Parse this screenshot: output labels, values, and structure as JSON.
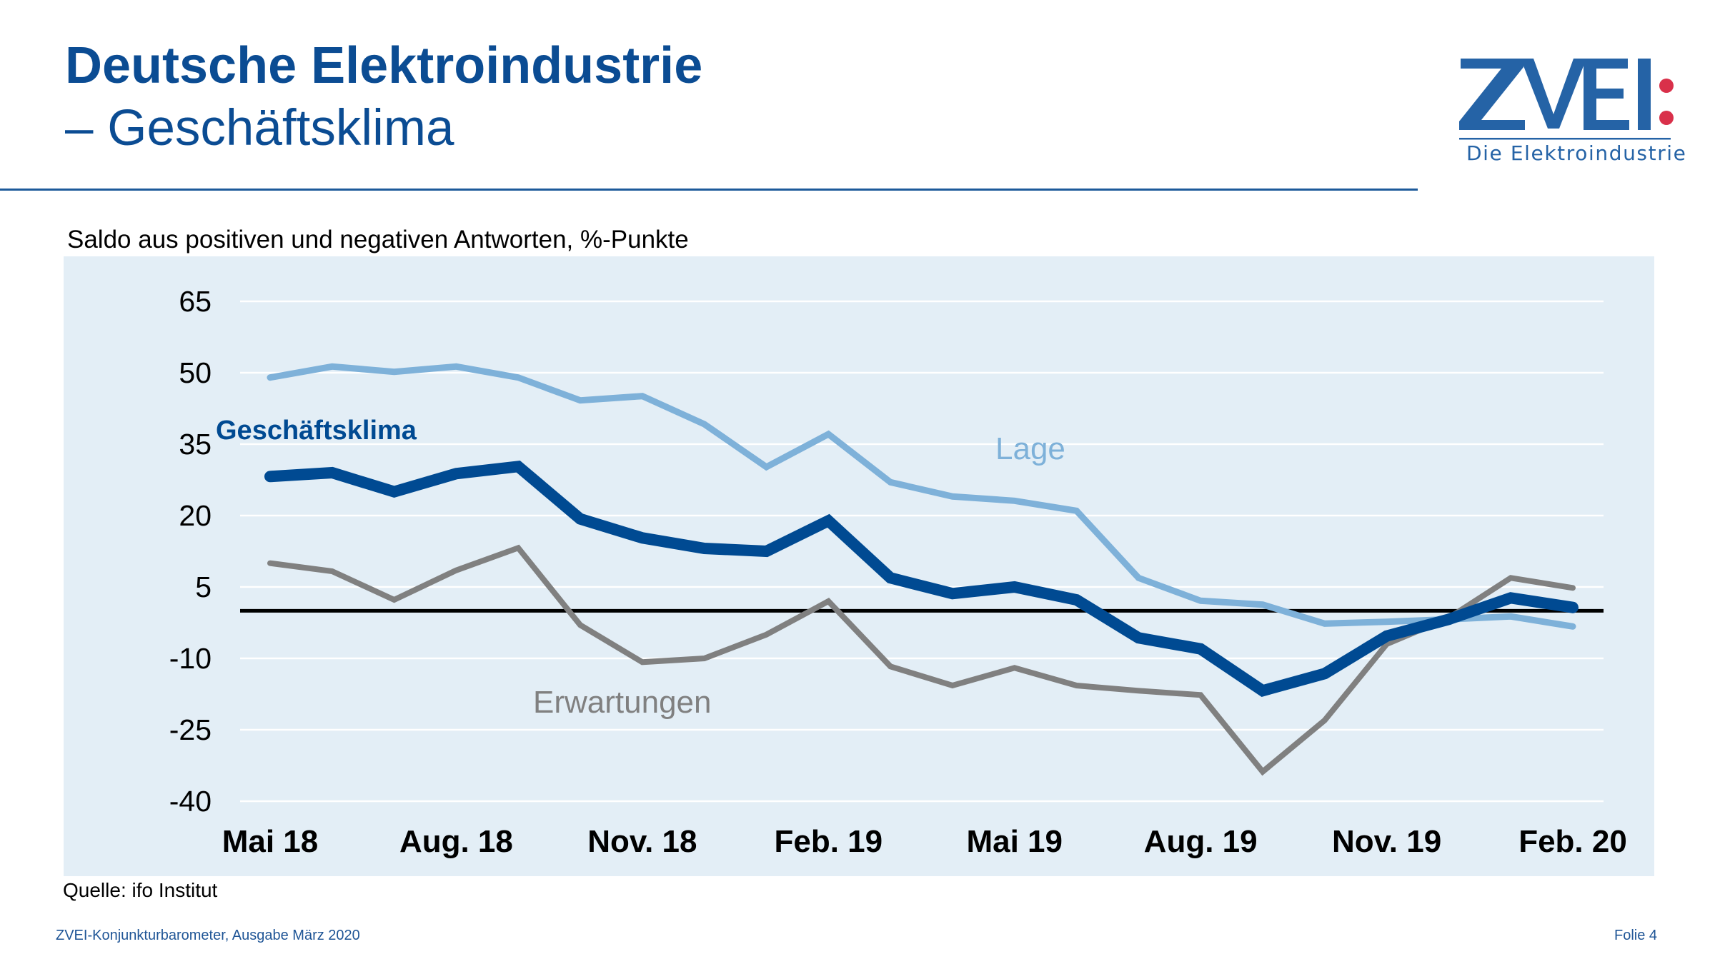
{
  "header": {
    "title_line1": "Deutsche Elektroindustrie",
    "title_line2": "– Geschäftsklima"
  },
  "logo": {
    "wordmark": "ZVEI:",
    "tagline": "Die Elektroindustrie"
  },
  "colors": {
    "brand_blue": "#0b4c93",
    "klima": "#004a92",
    "lage": "#7eb1d9",
    "erwartungen": "#808080",
    "panel_bg": "#e3eef6",
    "logo_red": "#d9304a"
  },
  "chart_data": {
    "type": "line",
    "title": "Saldo aus positiven und negativen Antworten, %-Punkte",
    "xlabel": "",
    "ylabel": "",
    "ylim": [
      -40,
      65
    ],
    "yticks": [
      65,
      50,
      35,
      20,
      5,
      -10,
      -25,
      -40
    ],
    "ytick_labels": [
      "65",
      "50",
      "35",
      "20",
      "5",
      "-10",
      "-25",
      "-40"
    ],
    "grid": true,
    "reference_line": 0,
    "x": [
      "Mai 18",
      "Jun 18",
      "Jul 18",
      "Aug. 18",
      "Sep 18",
      "Okt 18",
      "Nov. 18",
      "Dez 18",
      "Jan 19",
      "Feb. 19",
      "Mär 19",
      "Apr 19",
      "Mai 19",
      "Jun 19",
      "Jul 19",
      "Aug. 19",
      "Sep 19",
      "Okt 19",
      "Nov. 19",
      "Dez 19",
      "Jan 20",
      "Feb. 20"
    ],
    "xtick_labels": [
      {
        "index": 0,
        "label": "Mai 18"
      },
      {
        "index": 3,
        "label": "Aug. 18"
      },
      {
        "index": 6,
        "label": "Nov. 18"
      },
      {
        "index": 9,
        "label": "Feb. 19"
      },
      {
        "index": 12,
        "label": "Mai 19"
      },
      {
        "index": 15,
        "label": "Aug. 19"
      },
      {
        "index": 18,
        "label": "Nov. 19"
      },
      {
        "index": 21,
        "label": "Feb. 20"
      }
    ],
    "series": [
      {
        "name": "Lage",
        "label": "Lage",
        "values": [
          49.0,
          51.3,
          50.2,
          51.3,
          49.0,
          44.2,
          45.1,
          39.2,
          30.2,
          37.1,
          27.0,
          24.0,
          23.1,
          21.0,
          6.9,
          2.1,
          1.3,
          -2.7,
          -2.3,
          -1.8,
          -1.2,
          -3.3
        ]
      },
      {
        "name": "Geschäftsklima",
        "label": "Geschäftsklima",
        "values": [
          28.2,
          29.0,
          25.0,
          28.8,
          30.3,
          19.3,
          15.3,
          13.1,
          12.5,
          18.9,
          6.9,
          3.6,
          5.0,
          2.3,
          -5.7,
          -8.0,
          -16.8,
          -13.2,
          -5.3,
          -1.8,
          2.7,
          0.7
        ]
      },
      {
        "name": "Erwartungen",
        "label": "Erwartungen",
        "values": [
          10.0,
          8.3,
          2.3,
          8.5,
          13.2,
          -3.0,
          -10.8,
          -10.0,
          -5.0,
          2.0,
          -11.7,
          -15.7,
          -12.0,
          -15.7,
          -16.8,
          -17.7,
          -33.8,
          -23.0,
          -7.0,
          -1.5,
          6.9,
          4.8
        ]
      }
    ]
  },
  "source": "Quelle: ifo Institut",
  "footer": {
    "publication": "ZVEI-Konjunkturbarometer, Ausgabe März 2020",
    "page": "Folie 4"
  }
}
